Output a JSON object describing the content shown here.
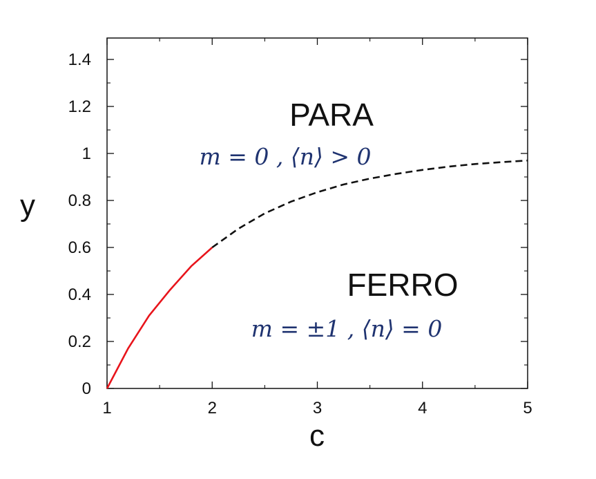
{
  "chart_data": {
    "type": "line",
    "xlabel": "c",
    "ylabel": "y",
    "xlim": [
      1,
      5
    ],
    "ylim": [
      0,
      1.5
    ],
    "x_ticks": [
      "1",
      "2",
      "3",
      "4",
      "5"
    ],
    "y_ticks": [
      "0",
      "0.2",
      "0.4",
      "0.6",
      "0.8",
      "1",
      "1.2",
      "1.4"
    ],
    "grid": false,
    "series": [
      {
        "style": "solid",
        "color": "#e8141b",
        "x": [
          1.0,
          1.2,
          1.4,
          1.6,
          1.8,
          2.0
        ],
        "y": [
          0.0,
          0.17,
          0.31,
          0.42,
          0.52,
          0.6
        ]
      },
      {
        "style": "dashed",
        "color": "#111111",
        "x": [
          2.0,
          2.25,
          2.5,
          2.75,
          3.0,
          3.25,
          3.5,
          3.75,
          4.0,
          4.25,
          4.5,
          4.75,
          5.0
        ],
        "y": [
          0.6,
          0.68,
          0.745,
          0.795,
          0.835,
          0.868,
          0.893,
          0.913,
          0.93,
          0.944,
          0.955,
          0.963,
          0.97
        ]
      }
    ],
    "annotations": [
      {
        "id": "para-title",
        "text": "PARA"
      },
      {
        "id": "para-formula",
        "text": "m = 0 , ⟨n⟩ > 0"
      },
      {
        "id": "ferro-title",
        "text": "FERRO"
      },
      {
        "id": "ferro-formula",
        "text": "m = ±1 , ⟨n⟩ = 0"
      }
    ]
  }
}
